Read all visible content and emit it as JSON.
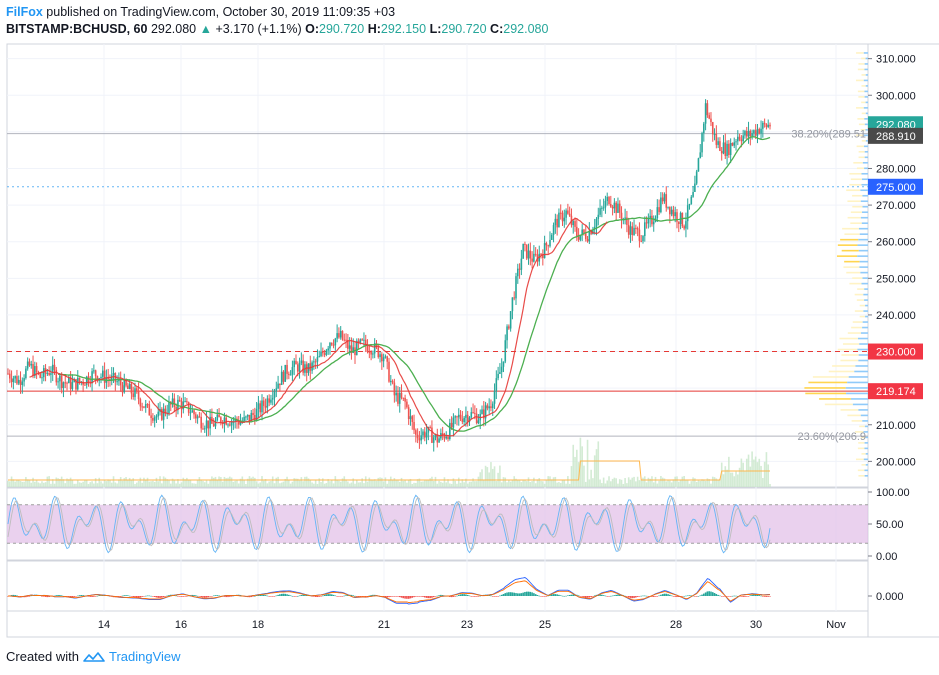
{
  "header": {
    "publisher": "FilFox",
    "published_text": "published on TradingView.com, October 30, 2019 11:09:35 +03",
    "symbol": "BITSTAMP:BCHUSD, 60",
    "last": "292.080",
    "change_arrow": "▲",
    "change": "+3.170 (+1.1%)",
    "o_label": "O:",
    "o_value": "290.720",
    "h_label": "H:",
    "h_value": "292.150",
    "l_label": "L:",
    "l_value": "290.720",
    "c_label": "C:",
    "c_value": "292.080"
  },
  "footer": {
    "created_with": "Created with",
    "brand": "TradingView",
    "logo_icon": "tradingview-cloud-icon"
  },
  "colors": {
    "up": "#26a69a",
    "down": "#ef5350",
    "ma": "#4caf50",
    "level": "#e53935",
    "fib": "#b2b5be",
    "stoch_fill": "#e1bee7",
    "blue_label": "#2962ff",
    "dark_label": "#4a4a4a"
  },
  "chart_data": [
    {
      "type": "candlestick",
      "pane": "price",
      "ylim": [
        193,
        314
      ],
      "y_ticks": [
        "310.000",
        "300.000",
        "290.000",
        "280.000",
        "270.000",
        "260.000",
        "250.000",
        "240.000",
        "230.000",
        "220.000",
        "210.000",
        "200.000"
      ],
      "x_ticks": [
        "14",
        "16",
        "18",
        "21",
        "23",
        "25",
        "28",
        "30",
        "Nov"
      ],
      "price_labels": [
        {
          "text": "292.080",
          "value": 292.08,
          "style": "up"
        },
        {
          "text": "288.910",
          "value": 288.91,
          "style": "dark"
        },
        {
          "text": "275.000",
          "value": 275.0,
          "style": "blue"
        },
        {
          "text": "230.000",
          "value": 230.0,
          "style": "red"
        },
        {
          "text": "219.174",
          "value": 219.174,
          "style": "red"
        }
      ],
      "horizontal_levels": [
        {
          "value": 230.0,
          "style": "dashed"
        },
        {
          "value": 219.174,
          "style": "solid"
        },
        {
          "value": 275.0,
          "style": "dotted"
        }
      ],
      "fib_levels": [
        {
          "text": "38.20%(289.51",
          "value": 289.51
        },
        {
          "text": "23.60%(206.9",
          "value": 206.9
        }
      ],
      "close_path": [
        [
          0,
          224
        ],
        [
          6,
          222
        ],
        [
          12,
          226
        ],
        [
          18,
          223
        ],
        [
          24,
          225
        ],
        [
          30,
          222
        ],
        [
          36,
          221
        ],
        [
          42,
          222
        ],
        [
          48,
          224
        ],
        [
          54,
          223
        ],
        [
          60,
          222
        ],
        [
          66,
          220
        ],
        [
          72,
          218
        ],
        [
          78,
          214
        ],
        [
          84,
          212
        ],
        [
          90,
          215
        ],
        [
          96,
          216
        ],
        [
          102,
          214
        ],
        [
          108,
          211
        ],
        [
          114,
          210
        ],
        [
          120,
          212
        ],
        [
          126,
          211
        ],
        [
          132,
          211
        ],
        [
          138,
          213
        ],
        [
          144,
          216
        ],
        [
          150,
          221
        ],
        [
          156,
          225
        ],
        [
          162,
          226
        ],
        [
          168,
          225
        ],
        [
          174,
          228
        ],
        [
          180,
          233
        ],
        [
          186,
          234
        ],
        [
          192,
          230
        ],
        [
          198,
          232
        ],
        [
          204,
          231
        ],
        [
          210,
          229
        ],
        [
          216,
          218
        ],
        [
          222,
          216
        ],
        [
          228,
          207
        ],
        [
          234,
          208
        ],
        [
          240,
          206
        ],
        [
          246,
          208
        ],
        [
          252,
          212
        ],
        [
          258,
          213
        ],
        [
          264,
          212
        ],
        [
          270,
          216
        ],
        [
          276,
          226
        ],
        [
          282,
          244
        ],
        [
          288,
          258
        ],
        [
          294,
          255
        ],
        [
          300,
          258
        ],
        [
          306,
          265
        ],
        [
          312,
          268
        ],
        [
          318,
          262
        ],
        [
          324,
          262
        ],
        [
          330,
          267
        ],
        [
          336,
          272
        ],
        [
          342,
          268
        ],
        [
          348,
          263
        ],
        [
          354,
          262
        ],
        [
          360,
          266
        ],
        [
          366,
          272
        ],
        [
          372,
          268
        ],
        [
          378,
          265
        ],
        [
          384,
          274
        ],
        [
          390,
          297
        ],
        [
          396,
          287
        ],
        [
          402,
          285
        ],
        [
          408,
          289
        ],
        [
          414,
          289
        ],
        [
          420,
          291
        ],
        [
          426,
          292
        ]
      ],
      "volume_note": "volume histogram at bottom of price pane",
      "ma_note": "moving average line (green) and red moving average",
      "volume_profile_note": "visible range volume profile on right side"
    },
    {
      "type": "line",
      "pane": "stochastic_rsi",
      "ylim": [
        0,
        100
      ],
      "y_ticks": [
        "100.00",
        "50.00",
        "0.00"
      ],
      "band": [
        20,
        80
      ]
    },
    {
      "type": "histogram",
      "pane": "macd",
      "y_ticks": [
        "0.000"
      ]
    }
  ]
}
